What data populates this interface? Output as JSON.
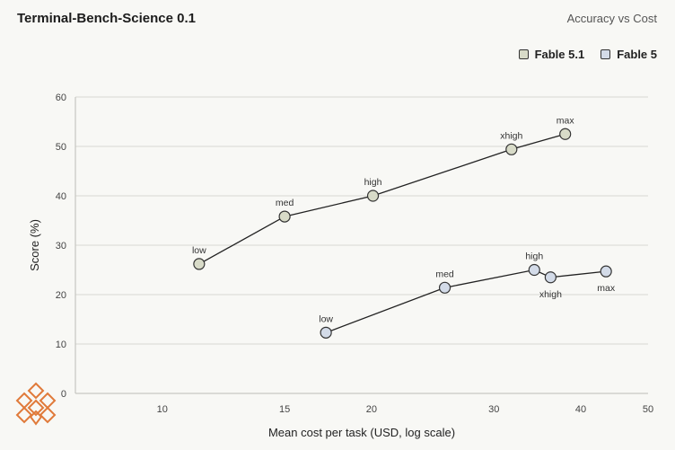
{
  "header": {
    "title": "Terminal-Bench-Science 0.1",
    "subtitle": "Accuracy vs Cost"
  },
  "chart_data": {
    "type": "line",
    "xlabel": "Mean cost per task (USD, log scale)",
    "ylabel": "Score (%)",
    "x_scale": "log",
    "xlim": [
      7.5,
      50
    ],
    "ylim": [
      0,
      60
    ],
    "x_ticks": [
      10,
      15,
      20,
      30,
      40,
      50
    ],
    "y_ticks": [
      0,
      10,
      20,
      30,
      40,
      50,
      60
    ],
    "grid": "horizontal",
    "legend_position": "top-right",
    "series": [
      {
        "name": "Fable 5.1",
        "color": "#d8dbc8",
        "points": [
          {
            "label": "low",
            "x": 11.3,
            "y": 26.2
          },
          {
            "label": "med",
            "x": 15.0,
            "y": 35.8
          },
          {
            "label": "high",
            "x": 20.1,
            "y": 40.0
          },
          {
            "label": "xhigh",
            "x": 31.8,
            "y": 49.4
          },
          {
            "label": "max",
            "x": 38.0,
            "y": 52.5
          }
        ]
      },
      {
        "name": "Fable 5",
        "color": "#d3dbe8",
        "points": [
          {
            "label": "low",
            "x": 17.2,
            "y": 12.3
          },
          {
            "label": "med",
            "x": 25.5,
            "y": 21.4
          },
          {
            "label": "high",
            "x": 34.3,
            "y": 25.0
          },
          {
            "label": "xhigh",
            "x": 36.2,
            "y": 23.5
          },
          {
            "label": "max",
            "x": 43.5,
            "y": 24.7
          }
        ]
      }
    ]
  },
  "logo": {
    "icon": "orange-lattice-logo-icon",
    "color": "#e07a3a"
  }
}
